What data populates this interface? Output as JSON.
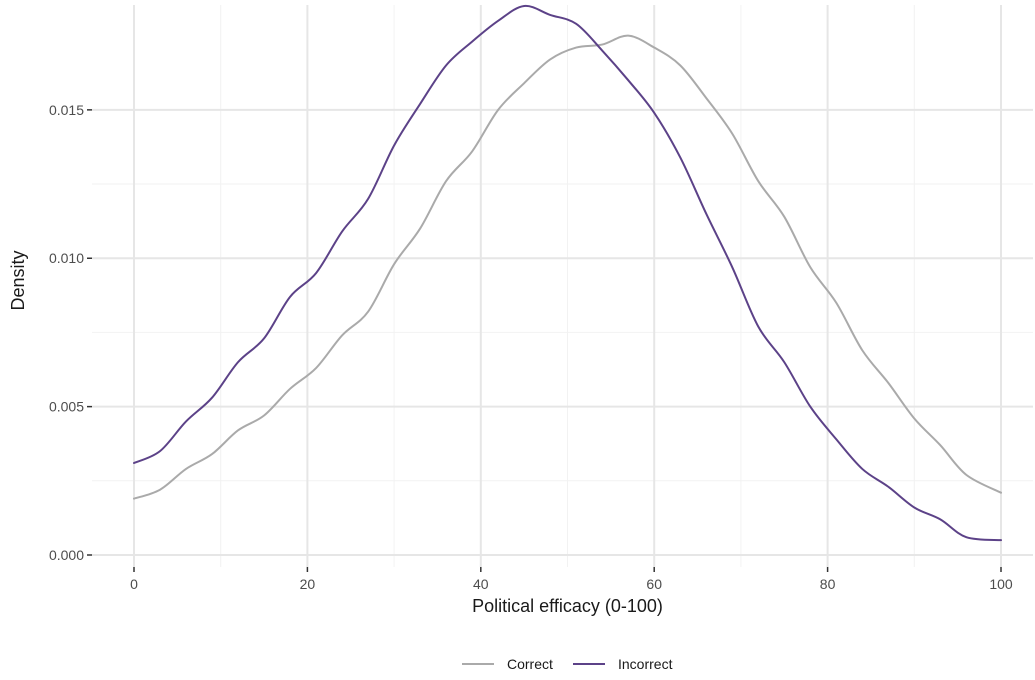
{
  "chart_data": {
    "type": "line",
    "title": "",
    "xlabel": "Political efficacy (0-100)",
    "ylabel": "Density",
    "xlim": [
      0,
      100
    ],
    "ylim": [
      0,
      0.0185
    ],
    "grid": true,
    "legend_position": "bottom",
    "x_ticks": [
      0,
      20,
      40,
      60,
      80,
      100
    ],
    "x_tick_labels": [
      "0",
      "20",
      "40",
      "60",
      "80",
      "100"
    ],
    "y_ticks": [
      0.0,
      0.005,
      0.01,
      0.015
    ],
    "y_tick_labels": [
      "0.000",
      "0.005",
      "0.010",
      "0.015"
    ],
    "series": [
      {
        "name": "Correct",
        "color": "#aaaaaa",
        "x": [
          0,
          3,
          6,
          9,
          12,
          15,
          18,
          21,
          24,
          27,
          30,
          33,
          36,
          39,
          42,
          45,
          48,
          51,
          54,
          57,
          60,
          63,
          66,
          69,
          72,
          75,
          78,
          81,
          84,
          87,
          90,
          93,
          96,
          100
        ],
        "y": [
          0.0019,
          0.0022,
          0.0029,
          0.0034,
          0.0042,
          0.0047,
          0.0056,
          0.0063,
          0.0074,
          0.0082,
          0.0098,
          0.011,
          0.0126,
          0.0136,
          0.015,
          0.0159,
          0.0167,
          0.0171,
          0.0172,
          0.0175,
          0.0171,
          0.0165,
          0.0154,
          0.0142,
          0.0126,
          0.0114,
          0.0097,
          0.0085,
          0.0069,
          0.0058,
          0.0046,
          0.0037,
          0.0027,
          0.0021
        ]
      },
      {
        "name": "Incorrect",
        "color": "#5c4288",
        "x": [
          0,
          3,
          6,
          9,
          12,
          15,
          18,
          21,
          24,
          27,
          30,
          33,
          36,
          39,
          42,
          45,
          48,
          51,
          54,
          57,
          60,
          63,
          66,
          69,
          72,
          75,
          78,
          81,
          84,
          87,
          90,
          93,
          96,
          100
        ],
        "y": [
          0.0031,
          0.0035,
          0.0045,
          0.0053,
          0.0065,
          0.0073,
          0.0087,
          0.0095,
          0.0109,
          0.012,
          0.0138,
          0.0152,
          0.0165,
          0.0173,
          0.018,
          0.0185,
          0.0182,
          0.0179,
          0.017,
          0.016,
          0.0149,
          0.0134,
          0.0115,
          0.0097,
          0.0077,
          0.0065,
          0.005,
          0.0039,
          0.0029,
          0.0023,
          0.0016,
          0.0012,
          0.0006,
          0.0005
        ]
      }
    ]
  }
}
